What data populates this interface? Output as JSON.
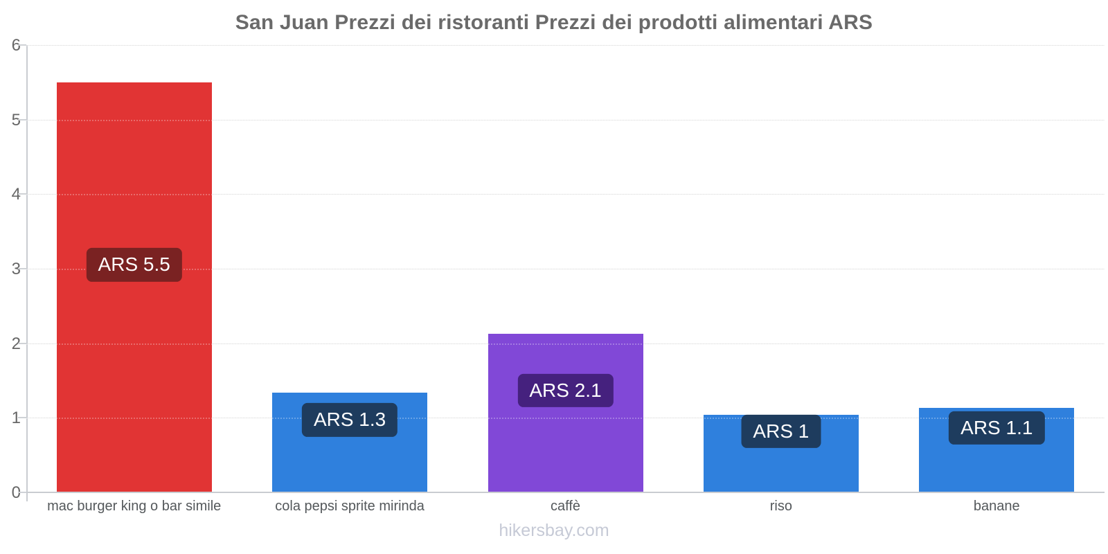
{
  "title": "San Juan Prezzi dei ristoranti Prezzi dei prodotti alimentari ARS",
  "footer": {
    "text": "hikersbay.com"
  },
  "chart_data": {
    "type": "bar",
    "title": "San Juan Prezzi dei ristoranti Prezzi dei prodotti alimentari ARS",
    "categories": [
      "mac burger king o bar simile",
      "cola pepsi sprite mirinda",
      "caffè",
      "riso",
      "banane"
    ],
    "values": [
      5.5,
      1.34,
      2.13,
      1.04,
      1.13
    ],
    "data_labels": [
      "ARS 5.5",
      "ARS 1.3",
      "ARS 2.1",
      "ARS 1",
      "ARS 1.1"
    ],
    "currency": "ARS",
    "bar_colors": [
      "#e13434",
      "#2f80dd",
      "#8148d7",
      "#2f80dd",
      "#2f80dd"
    ],
    "badge_colors": [
      "#7a2222",
      "#1e3c5e",
      "#45217e",
      "#1e3c5e",
      "#1e3c5e"
    ],
    "xlabel": "",
    "ylabel": "",
    "ylim": [
      0,
      6
    ],
    "yticks": [
      0,
      1,
      2,
      3,
      4,
      5,
      6
    ],
    "grid": true,
    "legend_position": "none",
    "colors": {
      "background": "#ffffff",
      "title": "#6a6a6a",
      "axis_label": "#666666",
      "category_label": "#54585b",
      "grid_line": "#e6e6e6",
      "axis_line": "#c9ccd1",
      "badge_text": "#ffffff",
      "footer": "#c6cad6"
    }
  }
}
